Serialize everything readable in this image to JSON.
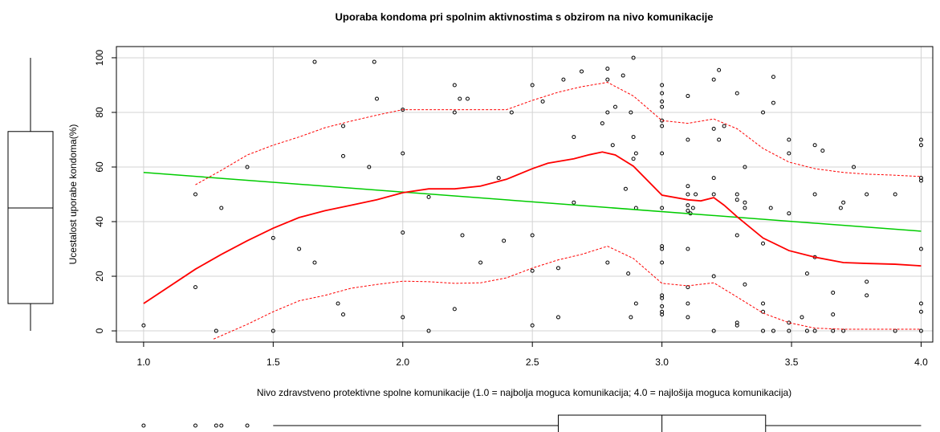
{
  "chart_data": {
    "type": "scatter",
    "title": "Uporaba kondoma pri spolnim aktivnostima s obzirom na nivo komunikacije",
    "x_label": "Nivo zdravstveno protektivne spolne komunikacije (1.0 = najbolja moguca komunikacija; 4.0 = najlošija moguca komunikacija)",
    "y_label": "Ucestalost uporabe kondoma(%)",
    "xlim": [
      0.895,
      4.045
    ],
    "ylim": [
      -4.1,
      104.1
    ],
    "xticks": [
      {
        "value": 1.0,
        "label": "1.0"
      },
      {
        "value": 1.5,
        "label": "1.5"
      },
      {
        "value": 2.0,
        "label": "2.0"
      },
      {
        "value": 2.5,
        "label": "2.5"
      },
      {
        "value": 3.0,
        "label": "3.0"
      },
      {
        "value": 3.5,
        "label": "3.5"
      },
      {
        "value": 4.0,
        "label": "4.0"
      }
    ],
    "yticks": [
      0,
      20,
      40,
      60,
      80,
      100
    ],
    "grid": true,
    "points": {
      "color": "#000000",
      "x": [
        1.0,
        1.2,
        1.2,
        1.3,
        1.28,
        1.4,
        1.5,
        1.5,
        1.6,
        1.66,
        1.66,
        1.75,
        1.77,
        1.77,
        1.77,
        1.87,
        1.89,
        1.9,
        2.0,
        2.0,
        2.0,
        2.0,
        2.1,
        2.1,
        2.2,
        2.2,
        2.2,
        2.22,
        2.25,
        2.23,
        2.3,
        2.37,
        2.39,
        2.42,
        2.5,
        2.5,
        2.5,
        2.5,
        2.54,
        2.6,
        2.6,
        2.62,
        2.66,
        2.66,
        2.69,
        2.77,
        2.79,
        2.79,
        2.79,
        2.79,
        2.81,
        2.82,
        2.85,
        2.86,
        2.87,
        2.88,
        2.89,
        2.89,
        2.9,
        2.89,
        2.9,
        2.9,
        2.88,
        3.0,
        3.0,
        3.0,
        3.0,
        3.0,
        3.0,
        3.0,
        3.0,
        3.0,
        3.0,
        3.0,
        3.0,
        3.0,
        3.0,
        3.0,
        3.0,
        3.1,
        3.1,
        3.1,
        3.1,
        3.1,
        3.1,
        3.11,
        3.1,
        3.1,
        3.1,
        3.1,
        3.13,
        3.12,
        3.2,
        3.2,
        3.2,
        3.2,
        3.2,
        3.2,
        3.22,
        3.22,
        3.24,
        3.29,
        3.29,
        3.29,
        3.29,
        3.29,
        3.29,
        3.32,
        3.32,
        3.32,
        3.32,
        3.39,
        3.39,
        3.39,
        3.39,
        3.39,
        3.42,
        3.43,
        3.43,
        3.43,
        3.49,
        3.49,
        3.49,
        3.49,
        3.49,
        3.56,
        3.54,
        3.56,
        3.59,
        3.59,
        3.59,
        3.59,
        3.62,
        3.66,
        3.66,
        3.66,
        3.69,
        3.7,
        3.7,
        3.74,
        3.79,
        3.79,
        3.79,
        3.9,
        3.9,
        4.0,
        4.0,
        4.0,
        4.0,
        4.0,
        4.0,
        4.0,
        4.0
      ],
      "y": [
        2,
        50,
        16,
        45,
        0,
        60,
        34,
        0,
        30,
        98.5,
        25,
        10,
        75,
        64,
        6,
        60,
        98.5,
        85,
        81,
        65,
        36,
        5,
        49,
        0,
        90,
        80,
        8,
        85,
        85,
        35,
        25,
        56,
        33,
        80,
        90,
        35,
        22,
        2,
        84,
        23,
        5,
        92,
        71,
        47,
        95,
        76,
        80,
        92,
        96,
        25,
        68,
        82,
        93.5,
        52,
        21,
        80,
        63,
        71,
        65,
        100,
        45,
        10,
        5,
        90,
        84,
        82,
        77,
        75,
        65,
        45,
        31,
        30,
        25,
        13,
        12,
        9,
        7,
        6,
        87,
        86,
        70,
        53,
        50,
        46,
        44,
        43,
        30,
        16,
        10,
        5,
        50,
        45,
        92,
        74,
        56,
        50,
        20,
        0,
        95.5,
        70,
        75,
        87,
        50,
        48,
        35,
        3,
        2,
        60,
        47,
        45,
        17,
        80,
        32,
        10,
        7,
        0,
        45,
        93,
        83.5,
        0,
        70,
        65,
        43,
        3,
        0,
        21,
        5,
        0,
        68,
        50,
        27,
        0,
        66,
        0,
        14,
        6,
        45,
        47,
        0,
        60,
        50,
        18,
        13,
        50,
        0,
        70,
        68,
        56,
        55,
        30,
        10,
        7,
        0
      ]
    },
    "linear_fit": {
      "color": "#00cc00",
      "x": [
        1.0,
        4.0
      ],
      "y": [
        58,
        36.5
      ]
    },
    "loess": {
      "color": "#ff0000",
      "x": [
        1.0,
        1.2,
        1.3,
        1.4,
        1.5,
        1.6,
        1.7,
        1.8,
        1.9,
        2.0,
        2.1,
        2.2,
        2.3,
        2.4,
        2.5,
        2.56,
        2.66,
        2.72,
        2.77,
        2.82,
        2.89,
        3.0,
        3.1,
        3.15,
        3.2,
        3.24,
        3.29,
        3.39,
        3.49,
        3.59,
        3.7,
        3.79,
        3.9,
        4.0
      ],
      "y": [
        10,
        22.6,
        28,
        33,
        37.6,
        41.5,
        44,
        46,
        48,
        50.6,
        52,
        52,
        53,
        55.5,
        59.4,
        61.4,
        63,
        64.5,
        65.5,
        64.4,
        60.3,
        49.7,
        48,
        47.6,
        48.8,
        46,
        41.8,
        34,
        29.4,
        27,
        25,
        24.7,
        24.4,
        23.8
      ]
    },
    "upper_band": {
      "color": "#ff0000",
      "x": [
        1.2,
        1.3,
        1.4,
        1.5,
        1.6,
        1.7,
        1.8,
        1.9,
        2.0,
        2.1,
        2.2,
        2.3,
        2.4,
        2.5,
        2.6,
        2.69,
        2.79,
        2.89,
        3.0,
        3.1,
        3.2,
        3.29,
        3.39,
        3.49,
        3.59,
        3.7,
        3.79,
        3.9,
        4.0
      ],
      "y": [
        53.5,
        58.8,
        64.4,
        68,
        71,
        74.4,
        76.8,
        79,
        81,
        81,
        81,
        81,
        81,
        84.4,
        87.4,
        89.4,
        91,
        86,
        77,
        76,
        77.6,
        74,
        66.8,
        61.8,
        59.4,
        58,
        57.4,
        57,
        56.5
      ]
    },
    "lower_band": {
      "color": "#ff0000",
      "x": [
        1.27,
        1.4,
        1.5,
        1.6,
        1.7,
        1.8,
        1.9,
        2.0,
        2.1,
        2.2,
        2.3,
        2.4,
        2.5,
        2.6,
        2.69,
        2.79,
        2.89,
        3.0,
        3.1,
        3.2,
        3.29,
        3.39,
        3.49,
        3.59,
        3.7,
        3.9,
        4.0
      ],
      "y": [
        -3,
        2.4,
        7,
        11,
        13,
        15.6,
        17,
        18.2,
        18,
        17.4,
        17.6,
        19.4,
        23,
        26,
        28,
        31,
        26.5,
        17.4,
        16.5,
        17.6,
        12.4,
        6.5,
        3,
        1,
        0.6,
        0.6,
        0.6
      ]
    },
    "boxplot_y": {
      "whisker_low": 0,
      "q1": 10,
      "median": 45,
      "q3": 73,
      "whisker_high": 100
    },
    "boxplot_x": {
      "whisker_low": 1.5,
      "q1": 2.6,
      "median": 3.0,
      "q3": 3.4,
      "whisker_high": 4.0,
      "outliers": [
        1.0,
        1.2,
        1.28,
        1.3,
        1.4
      ]
    }
  }
}
